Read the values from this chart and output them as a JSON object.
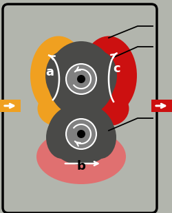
{
  "bg_color": "#b2b5ad",
  "rotor_dark": "#4a4a48",
  "rotor_gray": "#808080",
  "orange_color": "#f0a020",
  "red_color": "#cc1010",
  "pink_color": "#e07070",
  "white": "#ffffff",
  "black": "#000000",
  "label_a": "a",
  "label_b": "b",
  "label_c": "c",
  "fig_w": 2.5,
  "fig_h": 3.1,
  "dpi": 100
}
